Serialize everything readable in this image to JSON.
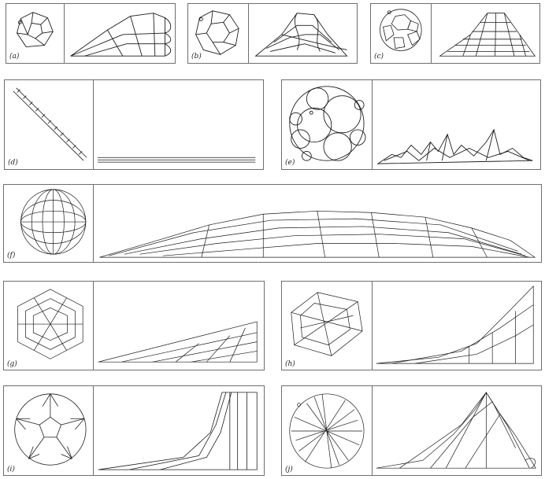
{
  "figure": {
    "panels": [
      {
        "id": "a",
        "label": "(a)"
      },
      {
        "id": "b",
        "label": "(b)"
      },
      {
        "id": "c",
        "label": "(c)"
      },
      {
        "id": "d",
        "label": "(d)"
      },
      {
        "id": "e",
        "label": "(e)"
      },
      {
        "id": "f",
        "label": "(f)"
      },
      {
        "id": "g",
        "label": "(g)"
      },
      {
        "id": "h",
        "label": "(h)"
      },
      {
        "id": "i",
        "label": "(i)"
      },
      {
        "id": "j",
        "label": "(j)"
      }
    ]
  },
  "colors": {
    "stroke": "#1a1a1a",
    "border": "#6e6e6e"
  }
}
